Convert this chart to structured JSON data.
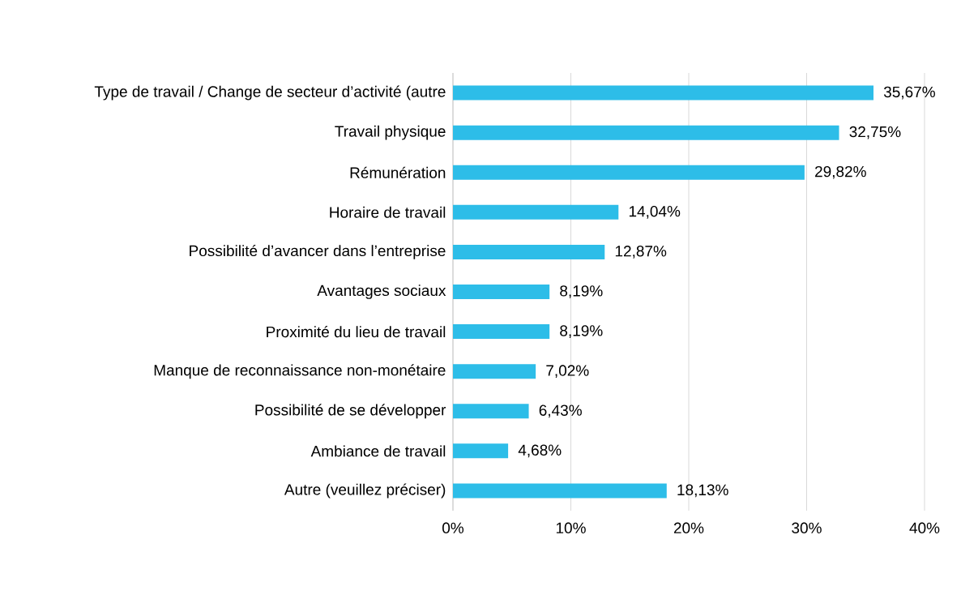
{
  "chart_data": {
    "type": "bar",
    "orientation": "horizontal",
    "categories": [
      "Type de travail / Change de secteur d’activité (autre",
      "Travail physique",
      "Rémunération",
      "Horaire de travail",
      "Possibilité d’avancer dans l’entreprise",
      "Avantages sociaux",
      "Proximité du lieu de travail",
      "Manque de reconnaissance non-monétaire",
      "Possibilité de se développer",
      "Ambiance de travail",
      "Autre (veuillez préciser)"
    ],
    "values": [
      35.67,
      32.75,
      29.82,
      14.04,
      12.87,
      8.19,
      8.19,
      7.02,
      6.43,
      4.68,
      18.13
    ],
    "value_labels": [
      "35,67%",
      "32,75%",
      "29,82%",
      "14,04%",
      "12,87%",
      "8,19%",
      "8,19%",
      "7,02%",
      "6,43%",
      "4,68%",
      "18,13%"
    ],
    "color": "#2dbde8",
    "xlim": [
      0,
      40
    ],
    "xticks": [
      {
        "value": 0,
        "label": "0%"
      },
      {
        "value": 10,
        "label": "10%"
      },
      {
        "value": 20,
        "label": "20%"
      },
      {
        "value": 30,
        "label": "30%"
      },
      {
        "value": 40,
        "label": "40%"
      }
    ],
    "grid": "x"
  }
}
